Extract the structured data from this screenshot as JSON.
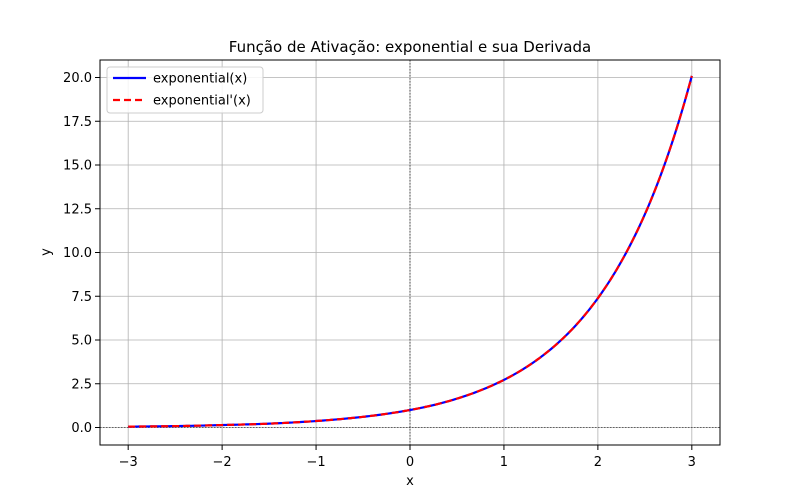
{
  "chart_data": {
    "type": "line",
    "title": "Função de Ativação: exponential e sua Derivada",
    "xlabel": "x",
    "ylabel": "y",
    "xlim": [
      -3.3,
      3.3
    ],
    "ylim": [
      -1.0,
      21.0
    ],
    "x_ticks": [
      -3,
      -2,
      -1,
      0,
      1,
      2,
      3
    ],
    "x_tick_labels": [
      "−3",
      "−2",
      "−1",
      "0",
      "1",
      "2",
      "3"
    ],
    "y_ticks": [
      0,
      2.5,
      5,
      7.5,
      10,
      12.5,
      15,
      17.5,
      20
    ],
    "y_tick_labels": [
      "0.0",
      "2.5",
      "5.0",
      "7.5",
      "10.0",
      "12.5",
      "15.0",
      "17.5",
      "20.0"
    ],
    "grid": true,
    "zero_lines": true,
    "legend_position": "top-left",
    "x": [
      -3.0,
      -2.5,
      -2.0,
      -1.5,
      -1.0,
      -0.5,
      0.0,
      0.25,
      0.5,
      0.75,
      1.0,
      1.25,
      1.5,
      1.75,
      2.0,
      2.25,
      2.5,
      2.75,
      3.0
    ],
    "series": [
      {
        "name": "exponential(x)",
        "color": "#0000ff",
        "style": "solid",
        "values": [
          0.05,
          0.08,
          0.14,
          0.22,
          0.37,
          0.61,
          1.0,
          1.28,
          1.65,
          2.12,
          2.72,
          3.49,
          4.48,
          5.75,
          7.39,
          9.49,
          12.18,
          15.64,
          20.09
        ]
      },
      {
        "name": "exponential'(x)",
        "color": "#ff0000",
        "style": "dashed",
        "values": [
          0.05,
          0.08,
          0.14,
          0.22,
          0.37,
          0.61,
          1.0,
          1.28,
          1.65,
          2.12,
          2.72,
          3.49,
          4.48,
          5.75,
          7.39,
          9.49,
          12.18,
          15.64,
          20.09
        ]
      }
    ]
  }
}
